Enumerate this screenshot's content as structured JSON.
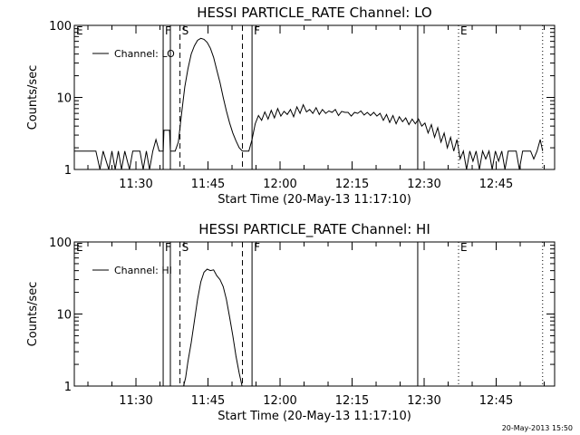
{
  "footer": "20-May-2013 15:50",
  "chart_data": [
    {
      "type": "line",
      "title": "HESSI PARTICLE_RATE Channel: LO",
      "xlabel": "Start Time (20-May-13 11:17:10)",
      "ylabel": "Counts/sec",
      "yscale": "log",
      "ylim": [
        1,
        100
      ],
      "xlim": [
        "11:17:10",
        "12:57:10"
      ],
      "x_ticks": [
        "11:30",
        "11:45",
        "12:00",
        "12:15",
        "12:30",
        "12:45"
      ],
      "y_ticks": [
        "1",
        "10",
        "100"
      ],
      "legend": {
        "placement": "top-left",
        "entries": [
          "Channel: LO"
        ]
      },
      "markers": [
        {
          "label": "E",
          "time": "11:17:10",
          "style": "none"
        },
        {
          "label": "F",
          "time": "11:35:40",
          "style": "solid"
        },
        {
          "label": "",
          "time": "11:37:10",
          "style": "solid"
        },
        {
          "label": "S",
          "time": "11:39:10",
          "style": "dashed"
        },
        {
          "label": "",
          "time": "11:52:10",
          "style": "dashed"
        },
        {
          "label": "F",
          "time": "11:54:10",
          "style": "solid"
        },
        {
          "label": "",
          "time": "12:28:40",
          "style": "solid"
        },
        {
          "label": "E",
          "time": "12:37:10",
          "style": "dotted"
        },
        {
          "label": "",
          "time": "12:54:40",
          "style": "dotted"
        }
      ],
      "series": [
        {
          "name": "Channel: LO",
          "points": [
            [
              "11:17:10",
              1.8
            ],
            [
              "11:21:40",
              1.8
            ],
            [
              "11:22:30",
              1.0
            ],
            [
              "11:23:10",
              1.8
            ],
            [
              "11:24:20",
              1.0
            ],
            [
              "11:25:00",
              1.8
            ],
            [
              "11:25:40",
              1.0
            ],
            [
              "11:26:20",
              1.8
            ],
            [
              "11:27:00",
              1.0
            ],
            [
              "11:27:40",
              1.8
            ],
            [
              "11:28:40",
              1.0
            ],
            [
              "11:29:20",
              1.8
            ],
            [
              "11:30:50",
              1.8
            ],
            [
              "11:31:30",
              1.0
            ],
            [
              "11:32:10",
              1.8
            ],
            [
              "11:32:50",
              1.0
            ],
            [
              "11:33:30",
              1.8
            ],
            [
              "11:34:10",
              2.6
            ],
            [
              "11:34:50",
              1.8
            ],
            [
              "11:35:40",
              1.8
            ],
            [
              "11:35:50",
              3.5
            ],
            [
              "11:37:00",
              3.5
            ],
            [
              "11:37:10",
              1.8
            ],
            [
              "11:38:10",
              1.8
            ],
            [
              "11:38:50",
              2.4
            ],
            [
              "11:39:30",
              6.0
            ],
            [
              "11:40:10",
              14.0
            ],
            [
              "11:40:50",
              25.0
            ],
            [
              "11:41:30",
              40.0
            ],
            [
              "11:42:10",
              52.0
            ],
            [
              "11:42:50",
              62.0
            ],
            [
              "11:43:30",
              66.0
            ],
            [
              "11:44:10",
              64.0
            ],
            [
              "11:44:50",
              58.0
            ],
            [
              "11:45:30",
              48.0
            ],
            [
              "11:46:10",
              36.0
            ],
            [
              "11:46:50",
              24.0
            ],
            [
              "11:47:30",
              16.0
            ],
            [
              "11:48:10",
              10.0
            ],
            [
              "11:48:50",
              6.5
            ],
            [
              "11:49:30",
              4.4
            ],
            [
              "11:50:10",
              3.2
            ],
            [
              "11:50:50",
              2.5
            ],
            [
              "11:51:30",
              2.0
            ],
            [
              "11:52:10",
              1.8
            ],
            [
              "11:53:30",
              1.8
            ],
            [
              "11:54:10",
              2.6
            ],
            [
              "11:54:50",
              4.3
            ],
            [
              "11:55:30",
              5.6
            ],
            [
              "11:56:10",
              4.8
            ],
            [
              "11:56:50",
              6.3
            ],
            [
              "11:57:30",
              5.0
            ],
            [
              "11:58:10",
              6.6
            ],
            [
              "11:58:50",
              5.2
            ],
            [
              "11:59:30",
              7.0
            ],
            [
              "12:00:10",
              5.5
            ],
            [
              "12:00:50",
              6.4
            ],
            [
              "12:01:30",
              5.8
            ],
            [
              "12:02:10",
              6.8
            ],
            [
              "12:02:50",
              5.4
            ],
            [
              "12:03:30",
              7.4
            ],
            [
              "12:04:10",
              6.0
            ],
            [
              "12:04:50",
              7.9
            ],
            [
              "12:05:30",
              6.3
            ],
            [
              "12:06:10",
              6.8
            ],
            [
              "12:06:50",
              6.0
            ],
            [
              "12:07:30",
              7.2
            ],
            [
              "12:08:10",
              5.8
            ],
            [
              "12:08:50",
              6.8
            ],
            [
              "12:09:30",
              6.0
            ],
            [
              "12:10:10",
              6.5
            ],
            [
              "12:10:50",
              6.2
            ],
            [
              "12:11:30",
              6.8
            ],
            [
              "12:12:10",
              5.6
            ],
            [
              "12:12:50",
              6.4
            ],
            [
              "12:13:30",
              6.2
            ],
            [
              "12:14:10",
              6.2
            ],
            [
              "12:14:50",
              5.5
            ],
            [
              "12:15:30",
              6.2
            ],
            [
              "12:16:10",
              6.0
            ],
            [
              "12:16:50",
              6.5
            ],
            [
              "12:17:30",
              5.7
            ],
            [
              "12:18:10",
              6.2
            ],
            [
              "12:18:50",
              5.6
            ],
            [
              "12:19:30",
              6.2
            ],
            [
              "12:20:10",
              5.5
            ],
            [
              "12:20:50",
              6.0
            ],
            [
              "12:21:30",
              4.8
            ],
            [
              "12:22:10",
              5.8
            ],
            [
              "12:22:50",
              4.5
            ],
            [
              "12:23:30",
              5.6
            ],
            [
              "12:24:10",
              4.3
            ],
            [
              "12:24:50",
              5.4
            ],
            [
              "12:25:30",
              4.6
            ],
            [
              "12:26:10",
              5.2
            ],
            [
              "12:26:50",
              4.2
            ],
            [
              "12:27:30",
              5.0
            ],
            [
              "12:28:10",
              4.3
            ],
            [
              "12:28:50",
              5.0
            ],
            [
              "12:29:30",
              4.0
            ],
            [
              "12:30:10",
              4.4
            ],
            [
              "12:30:50",
              3.2
            ],
            [
              "12:31:30",
              4.2
            ],
            [
              "12:32:10",
              2.8
            ],
            [
              "12:32:50",
              3.8
            ],
            [
              "12:33:30",
              2.4
            ],
            [
              "12:34:10",
              3.2
            ],
            [
              "12:34:50",
              2.0
            ],
            [
              "12:35:30",
              2.8
            ],
            [
              "12:36:10",
              1.8
            ],
            [
              "12:36:50",
              2.6
            ],
            [
              "12:37:30",
              1.4
            ],
            [
              "12:38:10",
              1.8
            ],
            [
              "12:38:50",
              1.0
            ],
            [
              "12:39:30",
              1.8
            ],
            [
              "12:40:10",
              1.3
            ],
            [
              "12:40:50",
              1.8
            ],
            [
              "12:41:30",
              1.0
            ],
            [
              "12:42:10",
              1.8
            ],
            [
              "12:42:50",
              1.4
            ],
            [
              "12:43:30",
              1.8
            ],
            [
              "12:44:10",
              1.0
            ],
            [
              "12:44:50",
              1.8
            ],
            [
              "12:45:30",
              1.3
            ],
            [
              "12:46:10",
              1.8
            ],
            [
              "12:46:50",
              1.0
            ],
            [
              "12:47:30",
              1.8
            ],
            [
              "12:49:10",
              1.8
            ],
            [
              "12:49:50",
              1.0
            ],
            [
              "12:50:30",
              1.8
            ],
            [
              "12:52:10",
              1.8
            ],
            [
              "12:52:50",
              1.4
            ],
            [
              "12:53:30",
              1.8
            ],
            [
              "12:54:10",
              2.6
            ],
            [
              "12:54:40",
              1.8
            ]
          ]
        }
      ]
    },
    {
      "type": "line",
      "title": "HESSI PARTICLE_RATE Channel: HI",
      "xlabel": "Start Time (20-May-13 11:17:10)",
      "ylabel": "Counts/sec",
      "yscale": "log",
      "ylim": [
        1,
        100
      ],
      "xlim": [
        "11:17:10",
        "12:57:10"
      ],
      "x_ticks": [
        "11:30",
        "11:45",
        "12:00",
        "12:15",
        "12:30",
        "12:45"
      ],
      "y_ticks": [
        "1",
        "10",
        "100"
      ],
      "legend": {
        "placement": "top-left",
        "entries": [
          "Channel: HI"
        ]
      },
      "markers": [
        {
          "label": "E",
          "time": "11:17:10",
          "style": "none"
        },
        {
          "label": "F",
          "time": "11:35:40",
          "style": "solid"
        },
        {
          "label": "",
          "time": "11:37:10",
          "style": "solid"
        },
        {
          "label": "S",
          "time": "11:39:10",
          "style": "dashed"
        },
        {
          "label": "",
          "time": "11:52:10",
          "style": "dashed"
        },
        {
          "label": "F",
          "time": "11:54:10",
          "style": "solid"
        },
        {
          "label": "",
          "time": "12:28:40",
          "style": "solid"
        },
        {
          "label": "E",
          "time": "12:37:10",
          "style": "dotted"
        },
        {
          "label": "",
          "time": "12:54:40",
          "style": "dotted"
        }
      ],
      "series": [
        {
          "name": "Channel: HI",
          "points": [
            [
              "11:39:50",
              0.95
            ],
            [
              "11:40:20",
              1.3
            ],
            [
              "11:40:50",
              2.2
            ],
            [
              "11:41:30",
              4.0
            ],
            [
              "11:42:10",
              8.0
            ],
            [
              "11:42:50",
              16.0
            ],
            [
              "11:43:30",
              28.0
            ],
            [
              "11:44:10",
              38.0
            ],
            [
              "11:44:50",
              42.0
            ],
            [
              "11:45:30",
              40.0
            ],
            [
              "11:46:10",
              41.0
            ],
            [
              "11:46:50",
              34.0
            ],
            [
              "11:47:30",
              30.0
            ],
            [
              "11:48:10",
              24.0
            ],
            [
              "11:48:50",
              16.0
            ],
            [
              "11:49:30",
              9.0
            ],
            [
              "11:50:10",
              5.0
            ],
            [
              "11:50:50",
              2.6
            ],
            [
              "11:51:30",
              1.5
            ],
            [
              "11:52:10",
              0.95
            ]
          ]
        }
      ]
    }
  ]
}
